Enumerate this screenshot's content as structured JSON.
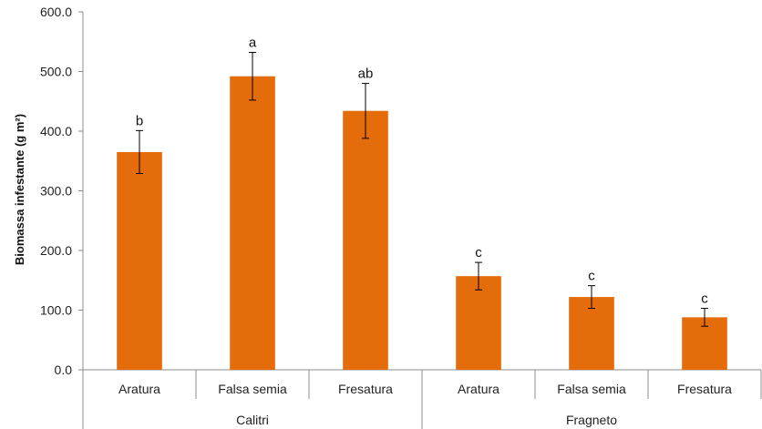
{
  "chart_data": {
    "type": "bar",
    "ylabel": "Biomassa infestante (g m²)",
    "ylim": [
      0,
      600
    ],
    "yticks": [
      "0.0",
      "100.0",
      "200.0",
      "300.0",
      "400.0",
      "500.0",
      "600.0"
    ],
    "grid": false,
    "color": "#E46C0A",
    "groups": [
      {
        "name": "Calitri",
        "categories": [
          "Aratura",
          "Falsa semia",
          "Fresatura"
        ]
      },
      {
        "name": "Fragneto",
        "categories": [
          "Aratura",
          "Falsa semia",
          "Fresatura"
        ]
      }
    ],
    "values": [
      365,
      492,
      434,
      157,
      122,
      88
    ],
    "errors": [
      36,
      40,
      46,
      23,
      19,
      15
    ],
    "significance": [
      "b",
      "a",
      "ab",
      "c",
      "c",
      "c"
    ]
  }
}
